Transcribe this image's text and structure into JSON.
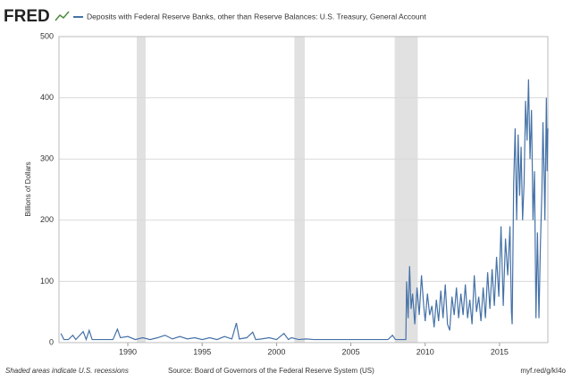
{
  "chart_data": {
    "type": "line",
    "brand": "FRED",
    "title": "Deposits with Federal Reserve Banks, other than Reserve Balances: U.S. Treasury, General Account",
    "y_label": "Billions of Dollars",
    "footnote": "Shaded areas indicate U.S. recessions",
    "source": "Source: Board of Governors of the Federal Reserve System (US)",
    "link": "myf.red/g/kI4o",
    "xlim": [
      1985.37,
      2018.25
    ],
    "ylim": [
      0,
      500
    ],
    "xticks": [
      1990,
      1995,
      2000,
      2005,
      2010,
      2015
    ],
    "yticks": [
      0,
      100,
      200,
      300,
      400,
      500
    ],
    "grid": true,
    "recessions": [
      [
        1990.6,
        1991.2
      ],
      [
        2001.2,
        2001.9
      ],
      [
        2007.95,
        2009.5
      ]
    ],
    "recession_color": "#e1e1e1",
    "series": [
      {
        "name": "Deposits with Federal Reserve Banks, other than Reserve Balances: U.S. Treasury, General Account",
        "color": "#4572a7",
        "x": [
          1985.5,
          1985.7,
          1986.0,
          1986.3,
          1986.5,
          1987.0,
          1987.2,
          1987.4,
          1987.6,
          1988.0,
          1988.5,
          1989.0,
          1989.3,
          1989.5,
          1990.0,
          1990.5,
          1991.0,
          1991.5,
          1992.0,
          1992.5,
          1993.0,
          1993.5,
          1994.0,
          1994.5,
          1995.0,
          1995.5,
          1996.0,
          1996.5,
          1997.0,
          1997.3,
          1997.5,
          1998.0,
          1998.4,
          1998.6,
          1999.0,
          1999.5,
          2000.0,
          2000.5,
          2000.8,
          2001.0,
          2001.5,
          2002.0,
          2002.5,
          2003.0,
          2003.5,
          2004.0,
          2004.5,
          2005.0,
          2005.5,
          2006.0,
          2006.5,
          2007.0,
          2007.5,
          2007.8,
          2008.0,
          2008.5,
          2008.7,
          2008.75,
          2008.85,
          2008.95,
          2009.05,
          2009.15,
          2009.3,
          2009.45,
          2009.6,
          2009.75,
          2009.9,
          2010.0,
          2010.15,
          2010.3,
          2010.45,
          2010.6,
          2010.75,
          2010.9,
          2011.05,
          2011.2,
          2011.35,
          2011.5,
          2011.65,
          2011.8,
          2011.95,
          2012.1,
          2012.25,
          2012.4,
          2012.55,
          2012.7,
          2012.85,
          2013.0,
          2013.15,
          2013.3,
          2013.45,
          2013.6,
          2013.75,
          2013.9,
          2014.05,
          2014.2,
          2014.35,
          2014.5,
          2014.65,
          2014.8,
          2014.95,
          2015.1,
          2015.25,
          2015.4,
          2015.55,
          2015.7,
          2015.8,
          2015.85,
          2015.95,
          2016.05,
          2016.15,
          2016.25,
          2016.35,
          2016.45,
          2016.55,
          2016.65,
          2016.75,
          2016.85,
          2016.95,
          2017.05,
          2017.15,
          2017.25,
          2017.35,
          2017.45,
          2017.55,
          2017.65,
          2017.75,
          2017.85,
          2017.92,
          2018.0,
          2018.05,
          2018.1,
          2018.15,
          2018.2,
          2018.25
        ],
        "values": [
          15,
          5,
          5,
          12,
          5,
          18,
          5,
          20,
          5,
          5,
          5,
          5,
          22,
          8,
          10,
          5,
          8,
          5,
          8,
          12,
          6,
          10,
          6,
          8,
          5,
          8,
          5,
          10,
          6,
          32,
          6,
          8,
          17,
          5,
          6,
          8,
          5,
          15,
          5,
          8,
          5,
          6,
          5,
          5,
          5,
          5,
          5,
          5,
          5,
          5,
          5,
          5,
          5,
          12,
          5,
          5,
          5,
          100,
          40,
          125,
          55,
          80,
          30,
          90,
          45,
          110,
          60,
          35,
          80,
          45,
          60,
          25,
          70,
          35,
          85,
          40,
          95,
          30,
          20,
          75,
          45,
          90,
          40,
          80,
          45,
          95,
          40,
          70,
          30,
          110,
          50,
          75,
          35,
          90,
          40,
          115,
          55,
          120,
          60,
          140,
          75,
          190,
          60,
          170,
          110,
          190,
          50,
          30,
          260,
          350,
          200,
          340,
          240,
          320,
          200,
          260,
          395,
          330,
          430,
          300,
          380,
          200,
          280,
          40,
          180,
          40,
          160,
          250,
          360,
          270,
          200,
          300,
          400,
          280,
          350
        ]
      }
    ]
  }
}
